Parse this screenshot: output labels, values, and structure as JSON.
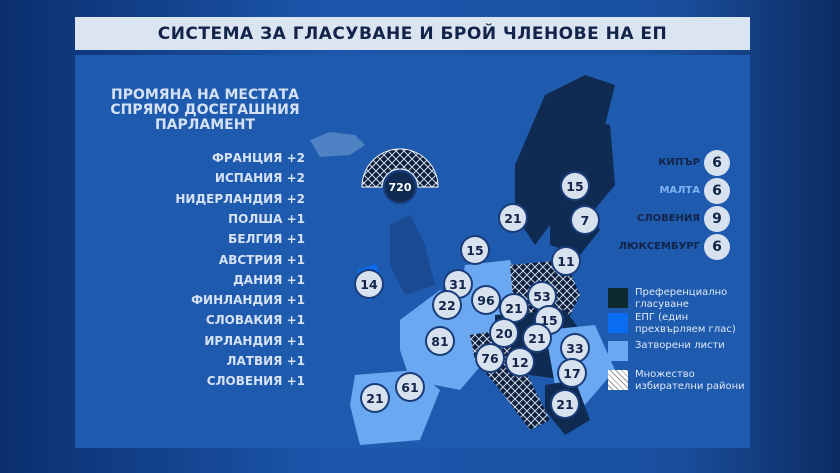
{
  "title": "СИСТЕМА ЗА ГЛАСУВАНЕ И БРОЙ ЧЛЕНОВЕ НА ЕП",
  "changes": {
    "heading": "ПРОМЯНА НА МЕСТАТА СПРЯМО ДОСЕГАШНИЯ ПАРЛАМЕНТ",
    "items": [
      "ФРАНЦИЯ +2",
      "ИСПАНИЯ +2",
      "НИДЕРЛАНДИЯ +2",
      "ПОЛША +1",
      "БЕЛГИЯ +1",
      "АВСТРИЯ +1",
      "ДАНИЯ +1",
      "ФИНЛАНДИЯ +1",
      "СЛОВАКИЯ +1",
      "ИРЛАНДИЯ +1",
      "ЛАТВИЯ +1",
      "СЛОВЕНИЯ +1"
    ]
  },
  "total_seats": "720",
  "map_seats": [
    "15",
    "21",
    "7",
    "15",
    "11",
    "14",
    "31",
    "96",
    "53",
    "22",
    "21",
    "81",
    "20",
    "15",
    "21",
    "33",
    "76",
    "12",
    "17",
    "61",
    "21",
    "21"
  ],
  "small_countries": [
    {
      "name": "КИПЪР",
      "seats": "6"
    },
    {
      "name": "МАЛТА",
      "seats": "6"
    },
    {
      "name": "СЛОВЕНИЯ",
      "seats": "9"
    },
    {
      "name": "ЛЮКСЕМБУРГ",
      "seats": "6"
    }
  ],
  "legend": [
    {
      "label": "Преференциално гласуване",
      "color": "#0d2a2e"
    },
    {
      "label": "ЕПГ (един прехвърляем глас)",
      "color": "#0a6cf0"
    },
    {
      "label": "Затворени листи",
      "color": "#6aa8f2"
    },
    {
      "label": "Множество избирателни райони",
      "color": "#ffffff"
    }
  ]
}
